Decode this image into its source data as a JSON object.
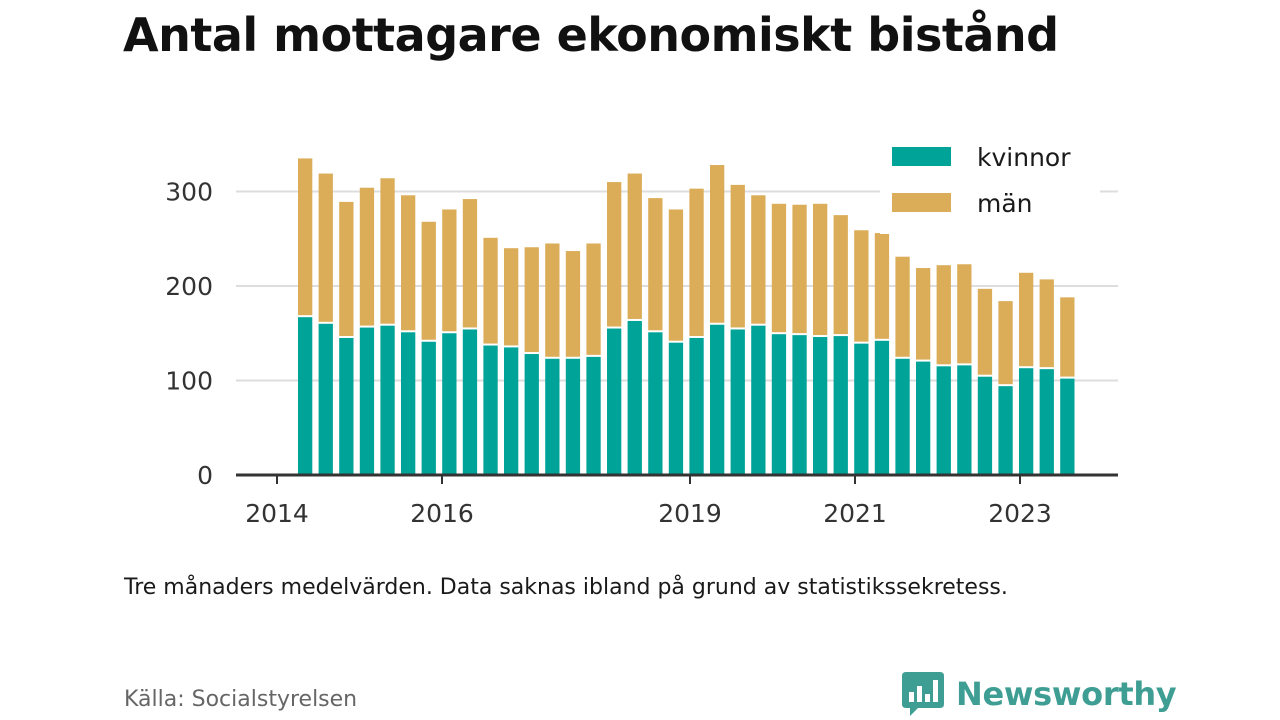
{
  "title": "Antal mottagare ekonomiskt bistånd",
  "note": "Tre månaders medelvärden. Data saknas ibland på grund av statistikssekretess.",
  "source": "Källa: Socialstyrelsen",
  "brand": "Newsworthy",
  "colors": {
    "kvinnor": "#00a398",
    "man": "#dbad59",
    "grid": "#dddddd",
    "axis": "#333333",
    "brand": "#3f9e93"
  },
  "chart_data": {
    "type": "bar",
    "stacked": true,
    "x_ticks": [
      "2014",
      "2016",
      "2019",
      "2021",
      "2023"
    ],
    "y_ticks": [
      "0",
      "100",
      "200",
      "300"
    ],
    "ylim": [
      0,
      360
    ],
    "grid": true,
    "legend_position": "top-right",
    "series": [
      {
        "name": "kvinnor",
        "values": [
          167,
          160,
          145,
          156,
          158,
          151,
          141,
          150,
          154,
          137,
          135,
          128,
          123,
          123,
          125,
          155,
          163,
          151,
          140,
          145,
          159,
          154,
          158,
          149,
          148,
          146,
          147,
          139,
          142,
          123,
          120,
          115,
          116,
          104,
          94,
          113,
          112,
          102
        ]
      },
      {
        "name": "män",
        "values": [
          168,
          159,
          144,
          148,
          156,
          145,
          127,
          131,
          138,
          114,
          105,
          113,
          122,
          114,
          120,
          155,
          156,
          142,
          141,
          158,
          169,
          153,
          138,
          138,
          138,
          141,
          128,
          120,
          114,
          108,
          99,
          107,
          107,
          93,
          90,
          101,
          95,
          86
        ]
      }
    ]
  }
}
